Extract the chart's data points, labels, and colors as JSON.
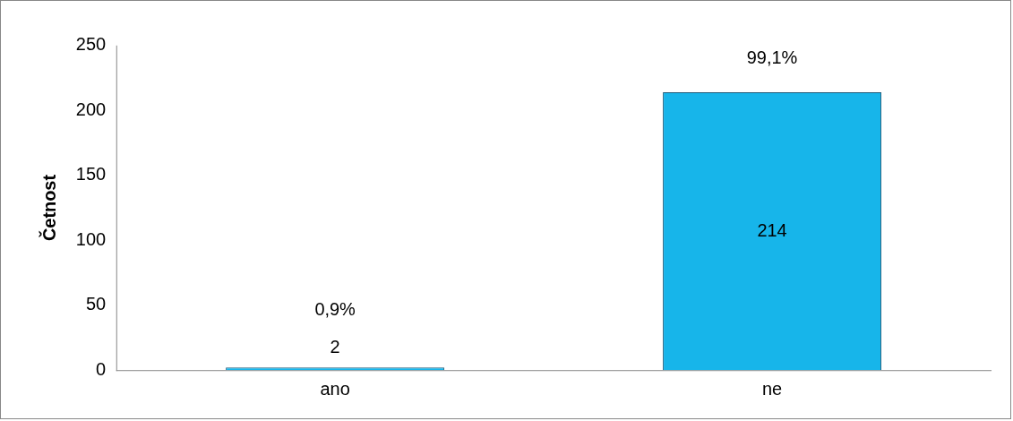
{
  "chart_data": {
    "type": "bar",
    "ylabel": "Četnost",
    "categories": [
      "ano",
      "ne"
    ],
    "values": [
      2,
      214
    ],
    "color": "#17b5ea",
    "ylim": [
      0,
      250
    ],
    "yticks": [
      0,
      50,
      100,
      150,
      200,
      250
    ],
    "grid": false,
    "legend": false,
    "data_labels": true,
    "annotations": [
      "0,9%",
      "99,1%"
    ]
  }
}
